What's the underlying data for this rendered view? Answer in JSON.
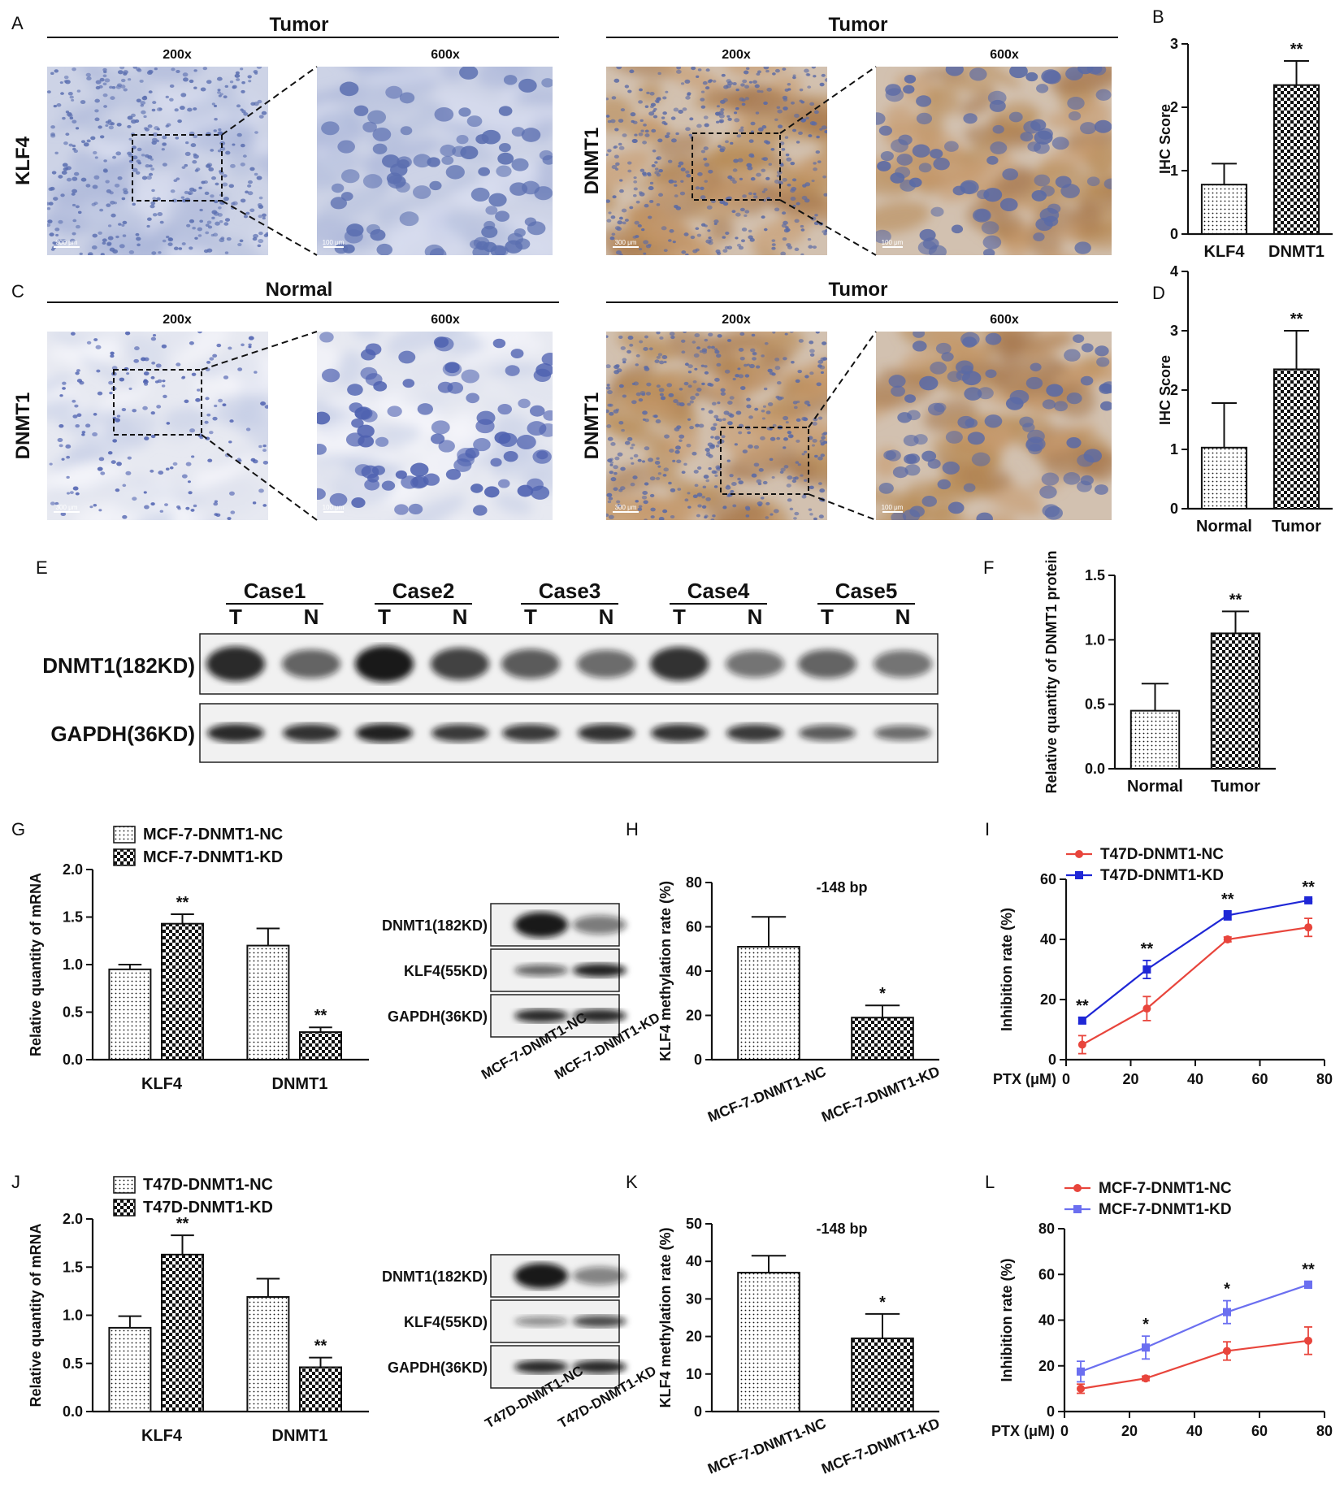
{
  "panel_labels": {
    "A": "A",
    "B": "B",
    "C": "C",
    "D": "D",
    "E": "E",
    "F": "F",
    "G": "G",
    "H": "H",
    "I": "I",
    "J": "J",
    "K": "K",
    "L": "L"
  },
  "colors": {
    "hematoxylin": "#5b6fb0",
    "dab": "#b88a55",
    "red_series": "#e8453c",
    "blue_series": "#1f27d6",
    "lightblue_series": "#6b6ff0"
  },
  "micrographs": {
    "row_a": {
      "left": {
        "group": "Tumor",
        "stain": "KLF4",
        "mag_low": "200x",
        "mag_high": "600x",
        "scale_low": "300 μm",
        "scale_high": "100 μm"
      },
      "right": {
        "group": "Tumor",
        "stain": "DNMT1",
        "mag_low": "200x",
        "mag_high": "600x",
        "scale_low": "300 μm",
        "scale_high": "100 μm"
      }
    },
    "row_c": {
      "left": {
        "group": "Normal",
        "stain": "DNMT1",
        "mag_low": "200x",
        "mag_high": "600x",
        "scale_low": "300 μm",
        "scale_high": "100 μm"
      },
      "right": {
        "group": "Tumor",
        "stain": "DNMT1",
        "mag_low": "200x",
        "mag_high": "600x",
        "scale_low": "300 μm",
        "scale_high": "100 μm"
      }
    }
  },
  "western_e": {
    "cases": [
      "Case1",
      "Case2",
      "Case3",
      "Case4",
      "Case5"
    ],
    "lane_labels": [
      "T",
      "N"
    ],
    "rows": [
      "DNMT1(182KD)",
      "GAPDH(36KD)"
    ],
    "dnmt1_intensity": [
      0.9,
      0.55,
      1.0,
      0.75,
      0.6,
      0.5,
      0.85,
      0.45,
      0.55,
      0.45
    ],
    "gapdh_intensity": [
      0.9,
      0.85,
      0.95,
      0.8,
      0.8,
      0.85,
      0.85,
      0.8,
      0.6,
      0.5
    ]
  },
  "western_g": {
    "rows": [
      "DNMT1(182KD)",
      "KLF4(55KD)",
      "GAPDH(36KD)"
    ],
    "lanes": [
      "MCF-7-DNMT1-NC",
      "MCF-7-DNMT1-KD"
    ],
    "intensity": [
      [
        1.0,
        0.4
      ],
      [
        0.55,
        0.95
      ],
      [
        0.9,
        0.9
      ]
    ]
  },
  "western_j": {
    "rows": [
      "DNMT1(182KD)",
      "KLF4(55KD)",
      "GAPDH(36KD)"
    ],
    "lanes": [
      "T47D-DNMT1-NC",
      "T47D-DNMT1-KD"
    ],
    "intensity": [
      [
        1.0,
        0.35
      ],
      [
        0.3,
        0.7
      ],
      [
        0.9,
        0.9
      ]
    ]
  },
  "chart_data": [
    {
      "id": "B",
      "type": "bar",
      "categories": [
        "KLF4",
        "DNMT1"
      ],
      "values": [
        0.78,
        2.35
      ],
      "errors": [
        0.33,
        0.38
      ],
      "significance": [
        "",
        "**"
      ],
      "ylabel": "IHC Score",
      "ylim": [
        0,
        3
      ],
      "yticks": [
        0,
        1,
        2,
        3
      ]
    },
    {
      "id": "D",
      "type": "bar",
      "categories": [
        "Normal",
        "Tumor"
      ],
      "values": [
        1.03,
        2.35
      ],
      "errors": [
        0.75,
        0.65
      ],
      "significance": [
        "",
        "**"
      ],
      "ylabel": "IHC Score",
      "ylim": [
        0,
        4
      ],
      "yticks": [
        0,
        1,
        2,
        3,
        4
      ]
    },
    {
      "id": "F",
      "type": "bar",
      "categories": [
        "Normal",
        "Tumor"
      ],
      "values": [
        0.45,
        1.05
      ],
      "errors": [
        0.21,
        0.17
      ],
      "significance": [
        "",
        "**"
      ],
      "ylabel": "Relative quantity of DNMT1 protein",
      "ylim": [
        0,
        1.5
      ],
      "yticks": [
        0.0,
        0.5,
        1.0,
        1.5
      ]
    },
    {
      "id": "G",
      "type": "bar",
      "categories": [
        "KLF4",
        "DNMT1"
      ],
      "series": [
        {
          "name": "MCF-7-DNMT1-NC",
          "values": [
            0.95,
            1.2
          ],
          "errors": [
            0.05,
            0.18
          ],
          "significance": [
            "",
            ""
          ]
        },
        {
          "name": "MCF-7-DNMT1-KD",
          "values": [
            1.43,
            0.29
          ],
          "errors": [
            0.1,
            0.05
          ],
          "significance": [
            "**",
            "**"
          ]
        }
      ],
      "ylabel": "Relative quantity of mRNA",
      "ylim": [
        0,
        2.0
      ],
      "yticks": [
        0.0,
        0.5,
        1.0,
        1.5,
        2.0
      ]
    },
    {
      "id": "H",
      "type": "bar",
      "categories": [
        "MCF-7-DNMT1-NC",
        "MCF-7-DNMT1-KD"
      ],
      "values": [
        51,
        19
      ],
      "errors": [
        13.5,
        5.5
      ],
      "significance": [
        "",
        "*"
      ],
      "title": "-148 bp",
      "ylabel": "KLF4 methylation rate (%)",
      "ylim": [
        0,
        80
      ],
      "yticks": [
        0,
        20,
        40,
        60,
        80
      ]
    },
    {
      "id": "I",
      "type": "line",
      "x": [
        5,
        25,
        50,
        75
      ],
      "series": [
        {
          "name": "T47D-DNMT1-NC",
          "values": [
            5,
            17,
            40,
            44
          ],
          "errors": [
            3,
            4,
            0.8,
            3
          ]
        },
        {
          "name": "T47D-DNMT1-KD",
          "values": [
            13,
            30,
            48,
            53
          ],
          "errors": [
            1,
            3,
            1.5,
            0.5
          ]
        }
      ],
      "significance": [
        "**",
        "**",
        "**",
        "**"
      ],
      "xlabel": "PTX (μM)",
      "ylabel": "Inhibition rate (%)",
      "xlim": [
        0,
        80
      ],
      "xticks": [
        0,
        20,
        40,
        60,
        80
      ],
      "ylim": [
        0,
        60
      ],
      "yticks": [
        0,
        20,
        40,
        60
      ]
    },
    {
      "id": "J",
      "type": "bar",
      "categories": [
        "KLF4",
        "DNMT1"
      ],
      "series": [
        {
          "name": "T47D-DNMT1-NC",
          "values": [
            0.87,
            1.19
          ],
          "errors": [
            0.12,
            0.19
          ],
          "significance": [
            "",
            ""
          ]
        },
        {
          "name": "T47D-DNMT1-KD",
          "values": [
            1.63,
            0.46
          ],
          "errors": [
            0.2,
            0.1
          ],
          "significance": [
            "**",
            "**"
          ]
        }
      ],
      "ylabel": "Relative quantity of mRNA",
      "ylim": [
        0,
        2.0
      ],
      "yticks": [
        0.0,
        0.5,
        1.0,
        1.5,
        2.0
      ]
    },
    {
      "id": "K",
      "type": "bar",
      "categories": [
        "MCF-7-DNMT1-NC",
        "MCF-7-DNMT1-KD"
      ],
      "values": [
        37,
        19.5
      ],
      "errors": [
        4.5,
        6.5
      ],
      "significance": [
        "",
        "*"
      ],
      "title": "-148 bp",
      "ylabel": "KLF4 methylation rate (%)",
      "ylim": [
        0,
        50
      ],
      "yticks": [
        0,
        10,
        20,
        30,
        40,
        50
      ]
    },
    {
      "id": "L",
      "type": "line",
      "x": [
        5,
        25,
        50,
        75
      ],
      "series": [
        {
          "name": "MCF-7-DNMT1-NC",
          "values": [
            10,
            14.5,
            26.5,
            31
          ],
          "errors": [
            2,
            1,
            4,
            6
          ]
        },
        {
          "name": "MCF-7-DNMT1-KD",
          "values": [
            17.5,
            28,
            43.5,
            55.5
          ],
          "errors": [
            4.5,
            5,
            5,
            1.5
          ]
        }
      ],
      "significance": [
        "",
        "*",
        "*",
        "**"
      ],
      "xlabel": "PTX (μM)",
      "ylabel": "Inhibition rate (%)",
      "xlim": [
        0,
        80
      ],
      "xticks": [
        0,
        20,
        40,
        60,
        80
      ],
      "ylim": [
        0,
        80
      ],
      "yticks": [
        0,
        20,
        40,
        60,
        80
      ]
    }
  ]
}
